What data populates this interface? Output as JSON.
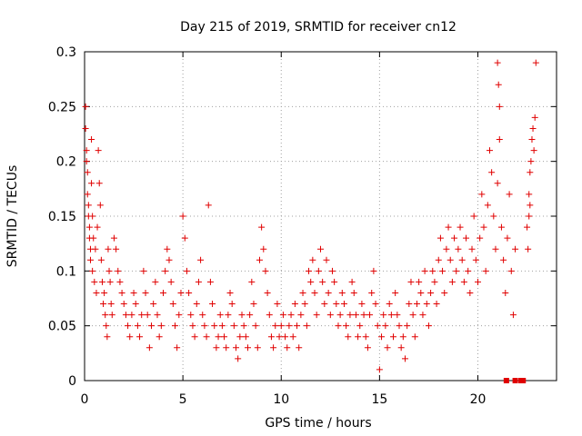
{
  "chart_data": {
    "type": "scatter",
    "title": "Day 215 of 2019, SRMTID for receiver cn12",
    "xlabel": "GPS time / hours",
    "ylabel": "SRMTID / TECUs",
    "xlim": [
      0,
      24
    ],
    "ylim": [
      0,
      0.3
    ],
    "xticks": [
      0,
      5,
      10,
      15,
      20
    ],
    "xtick_labels": [
      "0",
      "5",
      "10",
      "15",
      "20"
    ],
    "yticks": [
      0,
      0.05,
      0.1,
      0.15,
      0.2,
      0.25,
      0.3
    ],
    "ytick_labels": [
      "0",
      "0.05",
      "0.1",
      "0.15",
      "0.2",
      "0.25",
      "0.3"
    ],
    "grid": true,
    "marker": "plus",
    "color": "#e00000",
    "series": [
      {
        "name": "SRMTID",
        "points": [
          [
            0.05,
            0.25
          ],
          [
            0.05,
            0.23
          ],
          [
            0.1,
            0.21
          ],
          [
            0.1,
            0.2
          ],
          [
            0.15,
            0.19
          ],
          [
            0.15,
            0.17
          ],
          [
            0.2,
            0.16
          ],
          [
            0.2,
            0.15
          ],
          [
            0.25,
            0.14
          ],
          [
            0.25,
            0.13
          ],
          [
            0.3,
            0.12
          ],
          [
            0.3,
            0.11
          ],
          [
            0.35,
            0.22
          ],
          [
            0.35,
            0.18
          ],
          [
            0.4,
            0.15
          ],
          [
            0.4,
            0.1
          ],
          [
            0.45,
            0.13
          ],
          [
            0.5,
            0.09
          ],
          [
            0.55,
            0.12
          ],
          [
            0.6,
            0.08
          ],
          [
            0.65,
            0.14
          ],
          [
            0.7,
            0.21
          ],
          [
            0.75,
            0.18
          ],
          [
            0.8,
            0.16
          ],
          [
            0.85,
            0.11
          ],
          [
            0.9,
            0.09
          ],
          [
            0.95,
            0.07
          ],
          [
            1.0,
            0.08
          ],
          [
            1.05,
            0.06
          ],
          [
            1.1,
            0.05
          ],
          [
            1.15,
            0.04
          ],
          [
            1.2,
            0.12
          ],
          [
            1.25,
            0.1
          ],
          [
            1.3,
            0.09
          ],
          [
            1.35,
            0.07
          ],
          [
            1.4,
            0.06
          ],
          [
            1.5,
            0.13
          ],
          [
            1.6,
            0.12
          ],
          [
            1.7,
            0.1
          ],
          [
            1.8,
            0.09
          ],
          [
            1.9,
            0.08
          ],
          [
            2.0,
            0.07
          ],
          [
            2.1,
            0.06
          ],
          [
            2.2,
            0.05
          ],
          [
            2.3,
            0.04
          ],
          [
            2.4,
            0.06
          ],
          [
            2.5,
            0.08
          ],
          [
            2.6,
            0.07
          ],
          [
            2.7,
            0.05
          ],
          [
            2.8,
            0.04
          ],
          [
            2.9,
            0.06
          ],
          [
            3.0,
            0.1
          ],
          [
            3.1,
            0.08
          ],
          [
            3.2,
            0.06
          ],
          [
            3.3,
            0.03
          ],
          [
            3.4,
            0.05
          ],
          [
            3.5,
            0.07
          ],
          [
            3.6,
            0.09
          ],
          [
            3.7,
            0.06
          ],
          [
            3.8,
            0.04
          ],
          [
            3.9,
            0.05
          ],
          [
            4.0,
            0.08
          ],
          [
            4.1,
            0.1
          ],
          [
            4.2,
            0.12
          ],
          [
            4.3,
            0.11
          ],
          [
            4.4,
            0.09
          ],
          [
            4.5,
            0.07
          ],
          [
            4.6,
            0.05
          ],
          [
            4.7,
            0.03
          ],
          [
            4.8,
            0.06
          ],
          [
            4.9,
            0.08
          ],
          [
            5.0,
            0.15
          ],
          [
            5.1,
            0.13
          ],
          [
            5.2,
            0.1
          ],
          [
            5.3,
            0.08
          ],
          [
            5.4,
            0.06
          ],
          [
            5.5,
            0.05
          ],
          [
            5.6,
            0.04
          ],
          [
            5.7,
            0.07
          ],
          [
            5.8,
            0.09
          ],
          [
            5.9,
            0.11
          ],
          [
            6.0,
            0.06
          ],
          [
            6.1,
            0.05
          ],
          [
            6.2,
            0.04
          ],
          [
            6.3,
            0.16
          ],
          [
            6.4,
            0.09
          ],
          [
            6.5,
            0.07
          ],
          [
            6.6,
            0.05
          ],
          [
            6.7,
            0.03
          ],
          [
            6.8,
            0.04
          ],
          [
            6.9,
            0.06
          ],
          [
            7.0,
            0.05
          ],
          [
            7.1,
            0.04
          ],
          [
            7.2,
            0.03
          ],
          [
            7.3,
            0.06
          ],
          [
            7.4,
            0.08
          ],
          [
            7.5,
            0.07
          ],
          [
            7.6,
            0.05
          ],
          [
            7.7,
            0.03
          ],
          [
            7.8,
            0.02
          ],
          [
            7.9,
            0.04
          ],
          [
            8.0,
            0.06
          ],
          [
            8.1,
            0.05
          ],
          [
            8.2,
            0.04
          ],
          [
            8.3,
            0.03
          ],
          [
            8.4,
            0.06
          ],
          [
            8.5,
            0.09
          ],
          [
            8.6,
            0.07
          ],
          [
            8.7,
            0.05
          ],
          [
            8.8,
            0.03
          ],
          [
            8.9,
            0.11
          ],
          [
            9.0,
            0.14
          ],
          [
            9.1,
            0.12
          ],
          [
            9.2,
            0.1
          ],
          [
            9.3,
            0.08
          ],
          [
            9.4,
            0.06
          ],
          [
            9.5,
            0.04
          ],
          [
            9.6,
            0.03
          ],
          [
            9.7,
            0.05
          ],
          [
            9.8,
            0.07
          ],
          [
            9.9,
            0.04
          ],
          [
            10.0,
            0.05
          ],
          [
            10.1,
            0.06
          ],
          [
            10.2,
            0.04
          ],
          [
            10.3,
            0.03
          ],
          [
            10.4,
            0.05
          ],
          [
            10.5,
            0.06
          ],
          [
            10.6,
            0.04
          ],
          [
            10.7,
            0.07
          ],
          [
            10.8,
            0.05
          ],
          [
            10.9,
            0.03
          ],
          [
            11.0,
            0.06
          ],
          [
            11.1,
            0.08
          ],
          [
            11.2,
            0.07
          ],
          [
            11.3,
            0.05
          ],
          [
            11.4,
            0.1
          ],
          [
            11.5,
            0.09
          ],
          [
            11.6,
            0.11
          ],
          [
            11.7,
            0.08
          ],
          [
            11.8,
            0.06
          ],
          [
            11.9,
            0.1
          ],
          [
            12.0,
            0.12
          ],
          [
            12.1,
            0.09
          ],
          [
            12.2,
            0.07
          ],
          [
            12.3,
            0.11
          ],
          [
            12.4,
            0.08
          ],
          [
            12.5,
            0.06
          ],
          [
            12.6,
            0.1
          ],
          [
            12.7,
            0.09
          ],
          [
            12.8,
            0.07
          ],
          [
            12.9,
            0.05
          ],
          [
            13.0,
            0.06
          ],
          [
            13.1,
            0.08
          ],
          [
            13.2,
            0.07
          ],
          [
            13.3,
            0.05
          ],
          [
            13.4,
            0.04
          ],
          [
            13.5,
            0.06
          ],
          [
            13.6,
            0.09
          ],
          [
            13.7,
            0.08
          ],
          [
            13.8,
            0.06
          ],
          [
            13.9,
            0.04
          ],
          [
            14.0,
            0.05
          ],
          [
            14.1,
            0.07
          ],
          [
            14.2,
            0.06
          ],
          [
            14.3,
            0.04
          ],
          [
            14.4,
            0.03
          ],
          [
            14.5,
            0.06
          ],
          [
            14.6,
            0.08
          ],
          [
            14.7,
            0.1
          ],
          [
            14.8,
            0.07
          ],
          [
            14.9,
            0.05
          ],
          [
            15.0,
            0.01
          ],
          [
            15.1,
            0.04
          ],
          [
            15.2,
            0.06
          ],
          [
            15.3,
            0.05
          ],
          [
            15.4,
            0.03
          ],
          [
            15.5,
            0.07
          ],
          [
            15.6,
            0.06
          ],
          [
            15.7,
            0.04
          ],
          [
            15.8,
            0.08
          ],
          [
            15.9,
            0.06
          ],
          [
            16.0,
            0.05
          ],
          [
            16.1,
            0.03
          ],
          [
            16.2,
            0.04
          ],
          [
            16.3,
            0.02
          ],
          [
            16.4,
            0.05
          ],
          [
            16.5,
            0.07
          ],
          [
            16.6,
            0.09
          ],
          [
            16.7,
            0.06
          ],
          [
            16.8,
            0.04
          ],
          [
            16.9,
            0.07
          ],
          [
            17.0,
            0.09
          ],
          [
            17.1,
            0.08
          ],
          [
            17.2,
            0.06
          ],
          [
            17.3,
            0.1
          ],
          [
            17.4,
            0.07
          ],
          [
            17.5,
            0.05
          ],
          [
            17.6,
            0.08
          ],
          [
            17.7,
            0.1
          ],
          [
            17.8,
            0.09
          ],
          [
            17.9,
            0.07
          ],
          [
            18.0,
            0.11
          ],
          [
            18.1,
            0.13
          ],
          [
            18.2,
            0.1
          ],
          [
            18.3,
            0.08
          ],
          [
            18.4,
            0.12
          ],
          [
            18.5,
            0.14
          ],
          [
            18.6,
            0.11
          ],
          [
            18.7,
            0.09
          ],
          [
            18.8,
            0.13
          ],
          [
            18.9,
            0.1
          ],
          [
            19.0,
            0.12
          ],
          [
            19.1,
            0.14
          ],
          [
            19.2,
            0.11
          ],
          [
            19.3,
            0.09
          ],
          [
            19.4,
            0.13
          ],
          [
            19.5,
            0.1
          ],
          [
            19.6,
            0.08
          ],
          [
            19.7,
            0.12
          ],
          [
            19.8,
            0.15
          ],
          [
            19.9,
            0.11
          ],
          [
            20.0,
            0.09
          ],
          [
            20.1,
            0.13
          ],
          [
            20.2,
            0.17
          ],
          [
            20.3,
            0.14
          ],
          [
            20.4,
            0.1
          ],
          [
            20.5,
            0.16
          ],
          [
            20.6,
            0.21
          ],
          [
            20.7,
            0.19
          ],
          [
            20.8,
            0.15
          ],
          [
            20.9,
            0.12
          ],
          [
            21.0,
            0.18
          ],
          [
            21.1,
            0.22
          ],
          [
            21.2,
            0.14
          ],
          [
            21.3,
            0.11
          ],
          [
            21.4,
            0.08
          ],
          [
            21.5,
            0.13
          ],
          [
            21.6,
            0.17
          ],
          [
            21.7,
            0.1
          ],
          [
            21.8,
            0.06
          ],
          [
            21.9,
            0.12
          ],
          [
            21.0,
            0.29
          ],
          [
            21.05,
            0.27
          ],
          [
            21.1,
            0.25
          ],
          [
            22.5,
            0.14
          ],
          [
            22.6,
            0.17
          ],
          [
            22.65,
            0.19
          ],
          [
            22.7,
            0.2
          ],
          [
            22.75,
            0.22
          ],
          [
            22.8,
            0.23
          ],
          [
            22.85,
            0.21
          ],
          [
            22.9,
            0.24
          ],
          [
            22.95,
            0.29
          ],
          [
            22.55,
            0.12
          ],
          [
            22.6,
            0.15
          ],
          [
            22.65,
            0.16
          ]
        ]
      }
    ],
    "marker_squares": [
      [
        21.45,
        0.0
      ],
      [
        21.9,
        0.0
      ],
      [
        22.2,
        0.0
      ],
      [
        22.3,
        0.0
      ]
    ]
  }
}
